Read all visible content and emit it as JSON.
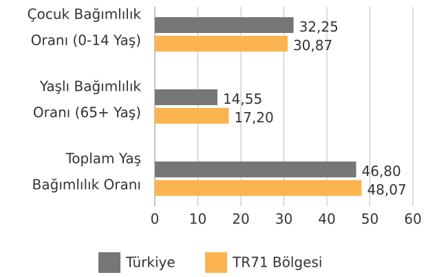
{
  "chart_data": {
    "type": "bar",
    "orientation": "horizontal",
    "categories": [
      [
        "Çocuk Bağımlılık",
        "Oranı (0-14 Yaş)"
      ],
      [
        "Yaşlı Bağımlılık",
        "Oranı (65+ Yaş)"
      ],
      [
        "Toplam Yaş",
        "Bağımlılık Oranı"
      ]
    ],
    "series": [
      {
        "name": "Türkiye",
        "color": "#767676",
        "values": [
          32.25,
          14.55,
          46.8
        ],
        "value_labels": [
          "32,25",
          "14,55",
          "46,80"
        ]
      },
      {
        "name": "TR71 Bölgesi",
        "color": "#fbb450",
        "values": [
          30.87,
          17.2,
          48.07
        ],
        "value_labels": [
          "30,87",
          "17,20",
          "48,07"
        ]
      }
    ],
    "xlim": [
      0,
      60
    ],
    "xticks": [
      0,
      10,
      20,
      30,
      40,
      50,
      60
    ],
    "grid": true,
    "legend": "bottom"
  }
}
